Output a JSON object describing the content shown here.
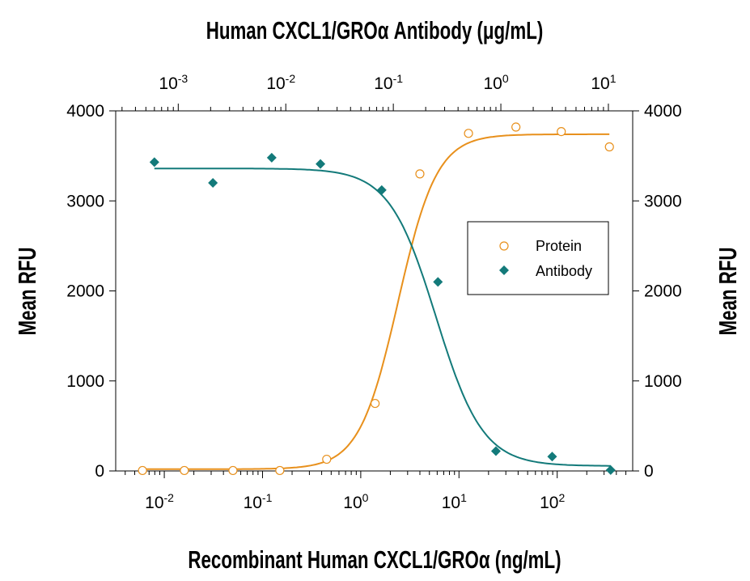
{
  "chart_data": {
    "type": "scatter",
    "title": "Human CXCL1/GROα Antibody (μg/mL)",
    "xlabel": "Recombinant Human CXCL1/GROα (ng/mL)",
    "ylabel_left": "Mean RFU",
    "ylabel_right": "Mean RFU",
    "ylim": [
      0,
      4000
    ],
    "yticks": [
      0,
      1000,
      2000,
      3000,
      4000
    ],
    "x_bottom": {
      "scale": "log",
      "unit": "ng/mL",
      "ticks": [
        0.01,
        0.1,
        1,
        10,
        100
      ],
      "tick_labels": [
        "10",
        "10",
        "10",
        "10",
        "10"
      ],
      "tick_exponents": [
        "-2",
        "-1",
        "0",
        "1",
        "2"
      ]
    },
    "x_top": {
      "scale": "log",
      "unit": "μg/mL",
      "ticks": [
        0.001,
        0.01,
        0.1,
        1,
        10
      ],
      "tick_labels": [
        "10",
        "10",
        "10",
        "10",
        "10"
      ],
      "tick_exponents": [
        "-3",
        "-2",
        "-1",
        "0",
        "1"
      ]
    },
    "legend": {
      "position": "right",
      "entries": [
        "Protein",
        "Antibody"
      ]
    },
    "series": [
      {
        "name": "Protein",
        "axis": "bottom",
        "marker": "open-circle",
        "color": "#e8901c",
        "x": [
          0.006,
          0.016,
          0.05,
          0.15,
          0.45,
          1.4,
          4.0,
          12.5,
          38,
          110,
          340
        ],
        "y": [
          5,
          5,
          5,
          5,
          130,
          750,
          3300,
          3750,
          3820,
          3770,
          3600
        ],
        "fit": {
          "bottom": 20,
          "top": 3740,
          "ec50": 2.4,
          "hill": 2.2
        }
      },
      {
        "name": "Antibody",
        "axis": "top",
        "marker": "filled-diamond",
        "color": "#137a7a",
        "x": [
          0.0006,
          0.0021,
          0.0074,
          0.021,
          0.078,
          0.26,
          0.9,
          3.0,
          10.5
        ],
        "y": [
          3430,
          3200,
          3480,
          3410,
          3120,
          2100,
          220,
          160,
          10
        ],
        "fit": {
          "bottom": 55,
          "top": 3360,
          "ec50": 0.25,
          "hill": 2.0
        }
      }
    ]
  }
}
